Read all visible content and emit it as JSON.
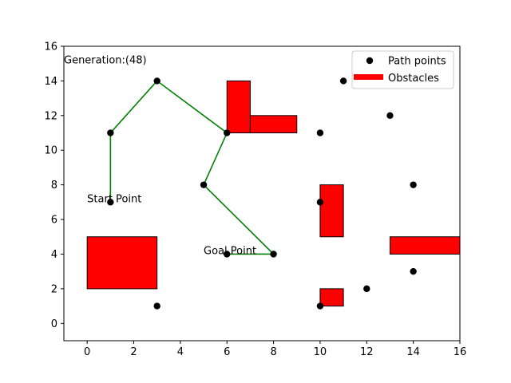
{
  "chart_data": {
    "type": "scatter",
    "title": "",
    "xlabel": "",
    "ylabel": "",
    "xlim": [
      -1,
      16
    ],
    "ylim": [
      -1,
      16
    ],
    "xticks": [
      0,
      2,
      4,
      6,
      8,
      10,
      12,
      14,
      16
    ],
    "yticks": [
      0,
      2,
      4,
      6,
      8,
      10,
      12,
      14,
      16
    ],
    "grid": false,
    "legend_position": "top-right",
    "legend": [
      {
        "label": "Path points",
        "marker": "circle",
        "color": "#000000"
      },
      {
        "label": "Obstacles",
        "marker": "bar",
        "color": "#ff0000"
      }
    ],
    "path_points": [
      [
        1,
        7
      ],
      [
        1,
        11
      ],
      [
        3,
        14
      ],
      [
        6,
        11
      ],
      [
        5,
        8
      ],
      [
        8,
        4
      ],
      [
        6,
        4
      ],
      [
        3,
        1
      ],
      [
        10,
        1
      ],
      [
        10,
        7
      ],
      [
        10,
        11
      ],
      [
        11,
        14
      ],
      [
        12,
        2
      ],
      [
        13,
        12
      ],
      [
        14,
        8
      ],
      [
        14,
        3
      ]
    ],
    "path_line": {
      "color": "#008000",
      "points": [
        [
          1,
          7
        ],
        [
          1,
          11
        ],
        [
          3,
          14
        ],
        [
          6,
          11
        ],
        [
          5,
          8
        ],
        [
          8,
          4
        ],
        [
          6,
          4
        ]
      ]
    },
    "obstacles": [
      {
        "x": 0,
        "y": 2,
        "width": 3,
        "height": 3
      },
      {
        "x": 6,
        "y": 11,
        "width": 1,
        "height": 3
      },
      {
        "x": 7,
        "y": 11,
        "width": 2,
        "height": 1
      },
      {
        "x": 10,
        "y": 5,
        "width": 1,
        "height": 3
      },
      {
        "x": 13,
        "y": 4,
        "width": 3,
        "height": 1
      },
      {
        "x": 10,
        "y": 1,
        "width": 1,
        "height": 1
      }
    ],
    "obstacle_color": "#ff0000",
    "annotations": [
      {
        "text": "Generation:(48)",
        "x": -1,
        "y": 15
      },
      {
        "text": "Start Point",
        "x": 0,
        "y": 7
      },
      {
        "text": "Goal Point",
        "x": 5,
        "y": 4
      }
    ]
  }
}
